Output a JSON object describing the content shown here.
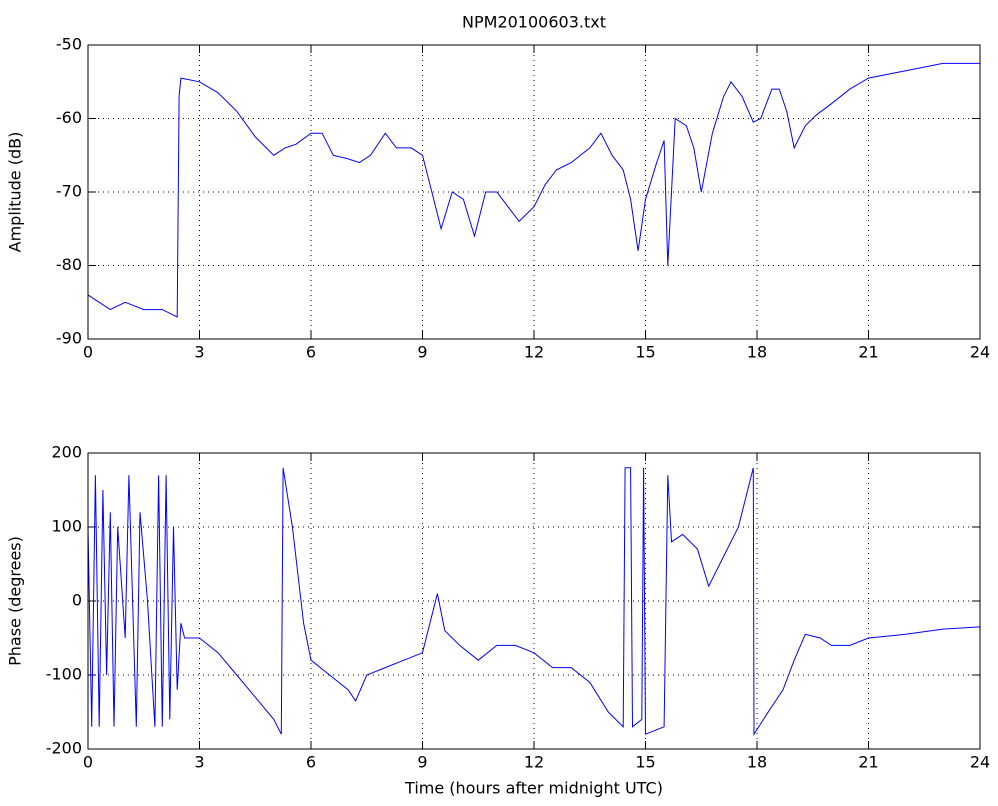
{
  "chart_data": [
    {
      "type": "line",
      "title": "NPM20100603.txt",
      "y_label": "Amplitude (dB)",
      "color": "#0000ff",
      "grid": true,
      "xlim": [
        0,
        24
      ],
      "xticks": [
        0,
        3,
        6,
        9,
        12,
        15,
        18,
        21,
        24
      ],
      "ylim": [
        -90,
        -50
      ],
      "yticks": [
        -90,
        -80,
        -70,
        -60,
        -50
      ],
      "x": [
        0,
        0.3,
        0.6,
        1,
        1.5,
        2,
        2.4,
        2.45,
        2.5,
        3,
        3.5,
        4,
        4.5,
        5,
        5.3,
        5.6,
        6,
        6.3,
        6.6,
        7,
        7.3,
        7.6,
        8,
        8.3,
        8.7,
        9,
        9.3,
        9.5,
        9.8,
        10.1,
        10.4,
        10.7,
        11,
        11.3,
        11.6,
        12,
        12.3,
        12.6,
        13,
        13.5,
        13.8,
        14.1,
        14.4,
        14.6,
        14.8,
        15,
        15.3,
        15.5,
        15.6,
        15.8,
        16.1,
        16.3,
        16.5,
        16.8,
        17.1,
        17.3,
        17.6,
        17.9,
        18.1,
        18.4,
        18.6,
        18.8,
        19,
        19.3,
        19.6,
        20,
        20.5,
        21,
        21.5,
        22,
        23,
        24
      ],
      "values": [
        -84,
        -85,
        -86,
        -85,
        -86,
        -86,
        -87,
        -57,
        -54.5,
        -55,
        -56.5,
        -59,
        -62.5,
        -65,
        -64,
        -63.5,
        -62,
        -62,
        -65,
        -65.5,
        -66,
        -65,
        -62,
        -64,
        -64,
        -65,
        -71,
        -75,
        -70,
        -71,
        -76,
        -70,
        -70,
        -72,
        -74,
        -72,
        -69,
        -67,
        -66,
        -64,
        -62,
        -65,
        -67,
        -71,
        -78,
        -71,
        -66,
        -63,
        -80,
        -60,
        -61,
        -64,
        -70,
        -62,
        -57,
        -55,
        -57,
        -60.5,
        -60,
        -56,
        -56,
        -59,
        -64,
        -61,
        -59.5,
        -58,
        -56,
        -54.5,
        -54,
        -53.5,
        -52.5,
        -52.5
      ]
    },
    {
      "type": "line",
      "x_label": "Time (hours after midnight UTC)",
      "y_label": "Phase (degrees)",
      "color": "#0000ff",
      "grid": true,
      "xlim": [
        0,
        24
      ],
      "xticks": [
        0,
        3,
        6,
        9,
        12,
        15,
        18,
        21,
        24
      ],
      "ylim": [
        -200,
        200
      ],
      "yticks": [
        -200,
        -100,
        0,
        100,
        200
      ],
      "x": [
        0,
        0.1,
        0.2,
        0.3,
        0.4,
        0.5,
        0.6,
        0.7,
        0.8,
        1,
        1.1,
        1.3,
        1.4,
        1.6,
        1.8,
        1.9,
        2,
        2.1,
        2.2,
        2.3,
        2.4,
        2.5,
        2.6,
        3,
        3.5,
        4,
        4.5,
        5,
        5.2,
        5.25,
        5.5,
        5.8,
        6,
        6.5,
        7,
        7.2,
        7.5,
        8,
        8.5,
        9,
        9.2,
        9.4,
        9.6,
        10,
        10.5,
        11,
        11.5,
        12,
        12.5,
        13,
        13.5,
        14,
        14.4,
        14.45,
        14.6,
        14.65,
        14.9,
        14.95,
        15,
        15.5,
        15.6,
        15.7,
        16,
        16.4,
        16.7,
        17,
        17.5,
        17.9,
        17.92,
        18.3,
        18.7,
        19,
        19.3,
        19.7,
        20,
        20.5,
        21,
        22,
        23,
        24
      ],
      "values": [
        100,
        -170,
        170,
        -170,
        150,
        -100,
        120,
        -170,
        100,
        -50,
        170,
        -170,
        120,
        0,
        -170,
        170,
        -170,
        170,
        -160,
        100,
        -120,
        -30,
        -50,
        -50,
        -70,
        -100,
        -130,
        -160,
        -180,
        180,
        100,
        -30,
        -80,
        -100,
        -120,
        -135,
        -100,
        -90,
        -80,
        -70,
        -30,
        10,
        -40,
        -60,
        -80,
        -60,
        -60,
        -70,
        -90,
        -90,
        -110,
        -150,
        -170,
        180,
        180,
        -170,
        -160,
        180,
        -180,
        -170,
        170,
        80,
        90,
        70,
        20,
        50,
        100,
        180,
        -180,
        -150,
        -120,
        -80,
        -45,
        -50,
        -60,
        -60,
        -50,
        -45,
        -38,
        -35
      ]
    }
  ]
}
